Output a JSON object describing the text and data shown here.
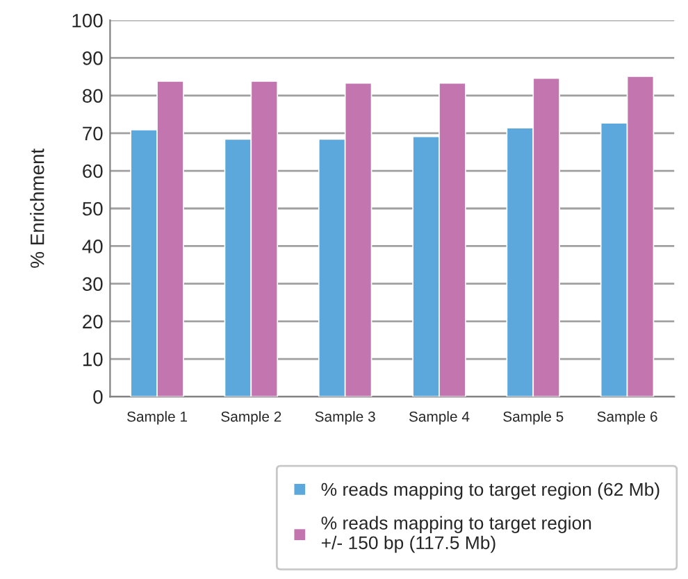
{
  "chart_data": {
    "type": "bar",
    "ylabel": "% Enrichment",
    "categories": [
      "Sample 1",
      "Sample 2",
      "Sample 3",
      "Sample 4",
      "Sample 5",
      "Sample 6"
    ],
    "series": [
      {
        "name": "% reads mapping to target region (62 Mb)",
        "color": "#5ca8dc",
        "values": [
          70.9,
          68.4,
          68.4,
          69.1,
          71.4,
          72.7
        ]
      },
      {
        "name": "% reads mapping to target region\n+/- 150 bp (117.5 Mb)",
        "color": "#c375b0",
        "values": [
          83.8,
          83.8,
          83.3,
          83.3,
          84.6,
          85.1
        ]
      }
    ],
    "ylim": [
      0,
      100
    ],
    "yticks": [
      0,
      10,
      20,
      30,
      40,
      50,
      60,
      70,
      80,
      90,
      100
    ],
    "grid": "y",
    "legend": "bottom"
  }
}
